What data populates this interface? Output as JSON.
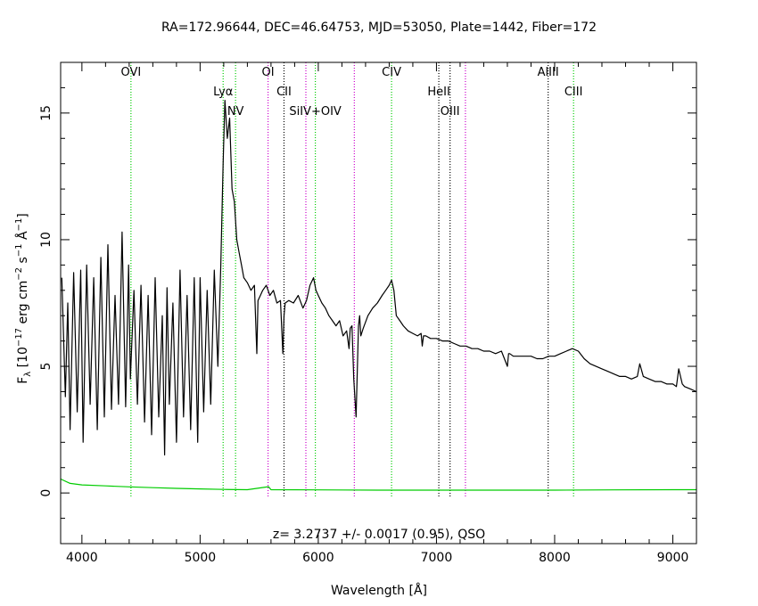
{
  "chart_data": {
    "type": "line",
    "title": "RA=172.96644, DEC=46.64753, MJD=53050, Plate=1442, Fiber=172",
    "xlabel": "Wavelength [Å]",
    "ylabel": "F_λ [10^-17 erg cm^-2 s^-1 Å^-1]",
    "ylabel_parts": {
      "f": "F",
      "lambda": "λ",
      "open": " [10",
      "e17": "−17",
      "erg": " erg cm",
      "e2": "−2",
      "s": " s",
      "e1a": "−1",
      "ang": " Å",
      "e1b": "−1",
      "close": "]"
    },
    "xlim": [
      3820,
      9200
    ],
    "ylim": [
      -2,
      17
    ],
    "xticks": [
      4000,
      5000,
      6000,
      7000,
      8000,
      9000
    ],
    "yticks": [
      0,
      5,
      10,
      15
    ],
    "annotation": "z= 3.2737 +/- 0.0017 (0.95), QSO",
    "colors": {
      "flux": "#000000",
      "error": "#00cc00",
      "green_line": "#00cc00",
      "magenta_line": "#cc00cc",
      "black_line": "#000000"
    },
    "emission_lines": [
      {
        "label": "OVI",
        "x": 4415,
        "color": "green"
      },
      {
        "label": "Lyα",
        "x": 5195,
        "color": "green"
      },
      {
        "label": "NV",
        "x": 5300,
        "color": "green"
      },
      {
        "label": "OI",
        "x": 5575,
        "color": "magenta"
      },
      {
        "label": "CII",
        "x": 5710,
        "color": "black"
      },
      {
        "label": "",
        "x": 5895,
        "color": "magenta"
      },
      {
        "label": "SiIV+OIV",
        "x": 5975,
        "color": "green"
      },
      {
        "label": "",
        "x": 6305,
        "color": "magenta"
      },
      {
        "label": "CIV",
        "x": 6620,
        "color": "green"
      },
      {
        "label": "HeII",
        "x": 7020,
        "color": "black"
      },
      {
        "label": "OIII",
        "x": 7115,
        "color": "black"
      },
      {
        "label": "",
        "x": 7245,
        "color": "magenta"
      },
      {
        "label": "AlIII",
        "x": 7945,
        "color": "black"
      },
      {
        "label": "CIII",
        "x": 8160,
        "color": "green"
      }
    ],
    "series": [
      {
        "name": "flux",
        "x": [
          3830,
          3860,
          3880,
          3900,
          3930,
          3960,
          3990,
          4010,
          4040,
          4070,
          4100,
          4130,
          4160,
          4190,
          4220,
          4250,
          4280,
          4310,
          4340,
          4370,
          4395,
          4410,
          4440,
          4470,
          4500,
          4530,
          4560,
          4590,
          4620,
          4650,
          4680,
          4700,
          4720,
          4740,
          4770,
          4800,
          4830,
          4860,
          4890,
          4920,
          4950,
          4980,
          5000,
          5030,
          5060,
          5090,
          5120,
          5150,
          5175,
          5195,
          5210,
          5230,
          5250,
          5270,
          5290,
          5310,
          5330,
          5350,
          5370,
          5400,
          5430,
          5460,
          5480,
          5490,
          5510,
          5530,
          5560,
          5590,
          5620,
          5650,
          5680,
          5700,
          5710,
          5720,
          5750,
          5790,
          5830,
          5870,
          5900,
          5930,
          5960,
          5980,
          6000,
          6030,
          6060,
          6090,
          6120,
          6150,
          6180,
          6210,
          6240,
          6260,
          6270,
          6285,
          6300,
          6320,
          6340,
          6350,
          6360,
          6380,
          6420,
          6460,
          6500,
          6540,
          6570,
          6600,
          6620,
          6640,
          6660,
          6690,
          6720,
          6760,
          6800,
          6840,
          6870,
          6880,
          6890,
          6910,
          6950,
          7000,
          7050,
          7100,
          7150,
          7200,
          7250,
          7300,
          7350,
          7400,
          7450,
          7500,
          7550,
          7600,
          7610,
          7620,
          7650,
          7700,
          7750,
          7800,
          7850,
          7900,
          7950,
          8000,
          8050,
          8100,
          8150,
          8200,
          8250,
          8300,
          8350,
          8400,
          8450,
          8500,
          8550,
          8600,
          8650,
          8700,
          8720,
          8750,
          8800,
          8850,
          8900,
          8950,
          9000,
          9030,
          9050,
          9080,
          9100,
          9150,
          9200
        ],
        "y": [
          8.5,
          3.8,
          7.5,
          2.5,
          8.7,
          3.2,
          8.8,
          2.0,
          9.0,
          3.5,
          8.5,
          2.5,
          9.3,
          3.0,
          9.8,
          3.3,
          7.8,
          3.5,
          10.3,
          3.4,
          9.0,
          4.5,
          8.0,
          3.5,
          8.2,
          2.8,
          7.8,
          2.3,
          8.5,
          3.0,
          7.0,
          1.5,
          8.1,
          3.5,
          7.5,
          2.0,
          8.8,
          3.0,
          7.8,
          2.5,
          8.5,
          2.0,
          8.5,
          3.2,
          8.0,
          3.5,
          8.8,
          5.0,
          9.0,
          13.0,
          15.5,
          14.0,
          14.8,
          12.0,
          11.5,
          10.0,
          9.5,
          9.0,
          8.5,
          8.3,
          8.0,
          8.2,
          5.5,
          7.6,
          7.8,
          8.0,
          8.2,
          7.8,
          8.0,
          7.5,
          7.6,
          5.5,
          7.0,
          7.5,
          7.6,
          7.5,
          7.8,
          7.3,
          7.6,
          8.2,
          8.5,
          8.0,
          7.8,
          7.5,
          7.3,
          7.0,
          6.8,
          6.6,
          6.8,
          6.2,
          6.4,
          5.7,
          6.5,
          6.6,
          4.5,
          3.0,
          6.6,
          7.0,
          6.2,
          6.5,
          7.0,
          7.3,
          7.5,
          7.8,
          8.0,
          8.2,
          8.4,
          8.0,
          7.0,
          6.8,
          6.6,
          6.4,
          6.3,
          6.2,
          6.3,
          5.8,
          6.2,
          6.2,
          6.1,
          6.1,
          6.0,
          6.0,
          5.9,
          5.8,
          5.8,
          5.7,
          5.7,
          5.6,
          5.6,
          5.5,
          5.6,
          5.0,
          5.5,
          5.5,
          5.4,
          5.4,
          5.4,
          5.4,
          5.3,
          5.3,
          5.4,
          5.4,
          5.5,
          5.6,
          5.7,
          5.6,
          5.3,
          5.1,
          5.0,
          4.9,
          4.8,
          4.7,
          4.6,
          4.6,
          4.5,
          4.6,
          5.1,
          4.6,
          4.5,
          4.4,
          4.4,
          4.3,
          4.3,
          4.2,
          4.9,
          4.3,
          4.2,
          4.1,
          4.0
        ]
      },
      {
        "name": "error",
        "x": [
          3820,
          3900,
          4000,
          4200,
          4400,
          4600,
          4800,
          5000,
          5200,
          5400,
          5580,
          5600,
          6000,
          6500,
          7000,
          7500,
          8000,
          8500,
          9000,
          9200
        ],
        "y": [
          0.55,
          0.38,
          0.32,
          0.28,
          0.24,
          0.21,
          0.18,
          0.16,
          0.14,
          0.13,
          0.25,
          0.13,
          0.12,
          0.11,
          0.11,
          0.11,
          0.11,
          0.12,
          0.13,
          0.13
        ]
      }
    ]
  }
}
